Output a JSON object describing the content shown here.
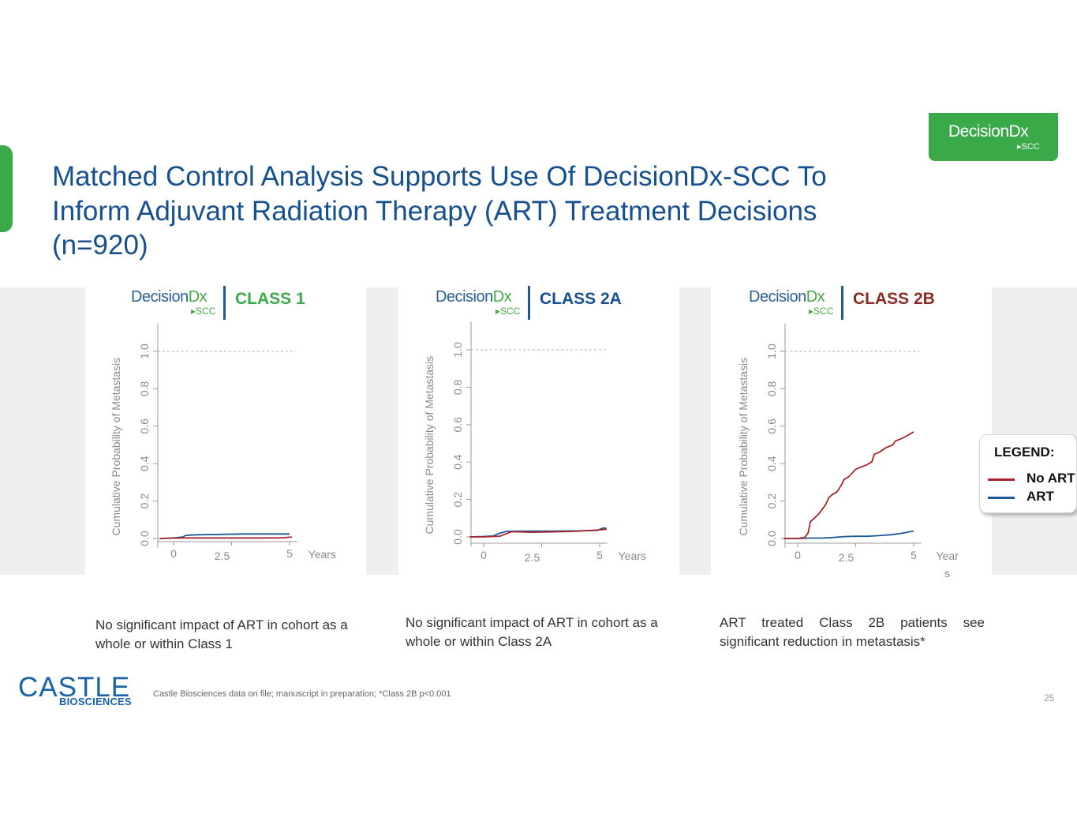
{
  "slide": {
    "title": "Matched Control Analysis Supports Use Of DecisionDx-SCC To Inform Adjuvant Radiation Therapy (ART) Treatment Decisions (n=920)",
    "page_number": "25",
    "footnote": "Castle Biosciences data on file; manuscript in preparation; *Class 2B p<0.001"
  },
  "brand": {
    "name": "DecisionDx",
    "sub": "SCC",
    "company_main": "CASTLE",
    "company_sub": "BIOSCIENCES"
  },
  "legend": {
    "title": "LEGEND:",
    "items": [
      {
        "label": "No ART",
        "color": "#a8262b"
      },
      {
        "label": "ART",
        "color": "#1f5a97"
      }
    ]
  },
  "chart_data": [
    {
      "type": "line",
      "title": "CLASS 1",
      "title_color": "#3aaa49",
      "xlabel": "Years",
      "ylabel": "Cumulative Probability of Metastasis",
      "xlim": [
        -0.6,
        5.6
      ],
      "ylim": [
        -0.05,
        1.15
      ],
      "xticks": [
        "0",
        "2.5",
        "5"
      ],
      "xtick_values": [
        0,
        2.5,
        5
      ],
      "yticks": [
        "0.0",
        "0.2",
        "0.4",
        "0.6",
        "0.8",
        "1.0"
      ],
      "ytick_values": [
        0,
        0.2,
        0.4,
        0.6,
        0.8,
        1.0
      ],
      "reference_line": 1.0,
      "series": [
        {
          "name": "No ART",
          "color": "#a8262b",
          "x": [
            -0.6,
            0,
            0.5,
            1,
            2,
            3,
            4,
            4.7,
            5.1
          ],
          "y": [
            0,
            0.002,
            0.003,
            0.003,
            0.003,
            0.003,
            0.003,
            0.004,
            0.008
          ]
        },
        {
          "name": "ART",
          "color": "#1f5a97",
          "x": [
            -0.6,
            0,
            0.4,
            0.5,
            0.7,
            1,
            2,
            3,
            4,
            5
          ],
          "y": [
            0,
            0.003,
            0.008,
            0.015,
            0.018,
            0.02,
            0.022,
            0.024,
            0.024,
            0.024
          ]
        }
      ]
    },
    {
      "type": "line",
      "title": "CLASS 2A",
      "title_color": "#17508f",
      "xlabel": "Years",
      "ylabel": "Cumulative Probability of Metastasis",
      "xlim": [
        -0.6,
        5.6
      ],
      "ylim": [
        -0.05,
        1.15
      ],
      "xticks": [
        "0",
        "2.5",
        "5"
      ],
      "xtick_values": [
        0,
        2.5,
        5
      ],
      "yticks": [
        "0.0",
        "0.2",
        "0.4",
        "0.6",
        "0.8",
        "1.0"
      ],
      "ytick_values": [
        0,
        0.2,
        0.4,
        0.6,
        0.8,
        1.0
      ],
      "reference_line": 1.0,
      "series": [
        {
          "name": "No ART",
          "color": "#a8262b",
          "x": [
            -0.6,
            0,
            0.7,
            1,
            1.2,
            2,
            3,
            4,
            5.3
          ],
          "y": [
            0,
            0,
            0.004,
            0.018,
            0.028,
            0.025,
            0.027,
            0.03,
            0.04
          ]
        },
        {
          "name": "ART",
          "color": "#1f5a97",
          "x": [
            -0.6,
            0,
            0.4,
            0.7,
            1,
            2,
            3,
            4,
            4.9,
            5.1,
            5.2,
            5.3
          ],
          "y": [
            0,
            0.002,
            0.005,
            0.02,
            0.03,
            0.031,
            0.031,
            0.032,
            0.035,
            0.045,
            0.048,
            0.045
          ]
        }
      ]
    },
    {
      "type": "line",
      "title": "CLASS 2B",
      "title_color": "#8b2a25",
      "xlabel": "Years",
      "ylabel": "Cumulative Probability of Metastasis",
      "xlim": [
        -0.6,
        5.6
      ],
      "ylim": [
        -0.05,
        1.15
      ],
      "xticks": [
        "0",
        "2.5",
        "5"
      ],
      "xtick_values": [
        0,
        2.5,
        5
      ],
      "yticks": [
        "0.0",
        "0.2",
        "0.4",
        "0.6",
        "0.8",
        "1.0"
      ],
      "ytick_values": [
        0,
        0.2,
        0.4,
        0.6,
        0.8,
        1.0
      ],
      "reference_line": 1.0,
      "series": [
        {
          "name": "No ART",
          "color": "#a8262b",
          "x": [
            -0.6,
            0,
            0.3,
            0.45,
            0.55,
            0.9,
            1.2,
            1.35,
            1.5,
            1.7,
            1.9,
            2.0,
            2.2,
            2.5,
            3.0,
            3.2,
            3.3,
            3.5,
            3.8,
            4.1,
            4.2,
            4.3,
            4.5,
            4.8,
            5.0
          ],
          "y": [
            0,
            0,
            0.005,
            0.03,
            0.09,
            0.13,
            0.18,
            0.22,
            0.235,
            0.25,
            0.29,
            0.315,
            0.33,
            0.37,
            0.395,
            0.41,
            0.45,
            0.46,
            0.485,
            0.5,
            0.52,
            0.525,
            0.535,
            0.555,
            0.57
          ]
        },
        {
          "name": "ART",
          "color": "#1f5a97",
          "x": [
            -0.6,
            0,
            0.5,
            1,
            1.5,
            2,
            2.5,
            3,
            3.5,
            4,
            4.5,
            5
          ],
          "y": [
            0,
            0,
            0.002,
            0.002,
            0.005,
            0.01,
            0.012,
            0.012,
            0.015,
            0.02,
            0.028,
            0.04
          ]
        }
      ]
    }
  ],
  "captions": [
    "No significant impact of ART in cohort as a whole or within Class 1",
    "No significant impact of ART in cohort as a whole or within Class 2A",
    "ART treated Class 2B patients see significant reduction in metastasis*"
  ]
}
